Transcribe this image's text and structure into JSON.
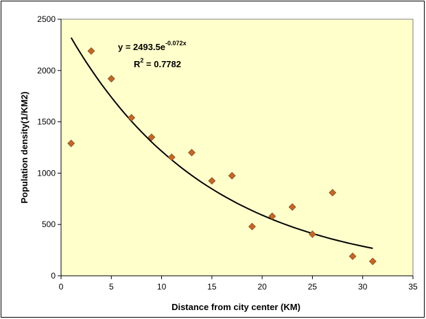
{
  "chart_data": {
    "type": "scatter",
    "title": "",
    "xlabel": "Distance from city center (KM)",
    "ylabel": "Population density(1/KM2)",
    "xlim": [
      0,
      35
    ],
    "ylim": [
      0,
      2500
    ],
    "xticks": [
      0,
      5,
      10,
      15,
      20,
      25,
      30,
      35
    ],
    "yticks": [
      0,
      500,
      1000,
      1500,
      2000,
      2500
    ],
    "grid": false,
    "legend": "none",
    "plot_background": "#ffffcc",
    "marker_color": "#c0682a",
    "marker_shape": "diamond",
    "points": [
      {
        "x": 1,
        "y": 1290
      },
      {
        "x": 3,
        "y": 2190
      },
      {
        "x": 5,
        "y": 1920
      },
      {
        "x": 7,
        "y": 1540
      },
      {
        "x": 9,
        "y": 1350
      },
      {
        "x": 11,
        "y": 1155
      },
      {
        "x": 13,
        "y": 1200
      },
      {
        "x": 15,
        "y": 925
      },
      {
        "x": 17,
        "y": 975
      },
      {
        "x": 19,
        "y": 480
      },
      {
        "x": 21,
        "y": 580
      },
      {
        "x": 23,
        "y": 670
      },
      {
        "x": 25,
        "y": 405
      },
      {
        "x": 27,
        "y": 810
      },
      {
        "x": 29,
        "y": 190
      },
      {
        "x": 31,
        "y": 140
      }
    ],
    "trendline": {
      "type": "exponential",
      "a": 2493.5,
      "b": -0.072,
      "x_range": [
        1,
        31
      ],
      "equation_prefix": "y = 2493.5e",
      "equation_exponent": "-0.072x",
      "r2_prefix": "R",
      "r2_exponent": "2",
      "r2_value": " = 0.7782"
    }
  }
}
